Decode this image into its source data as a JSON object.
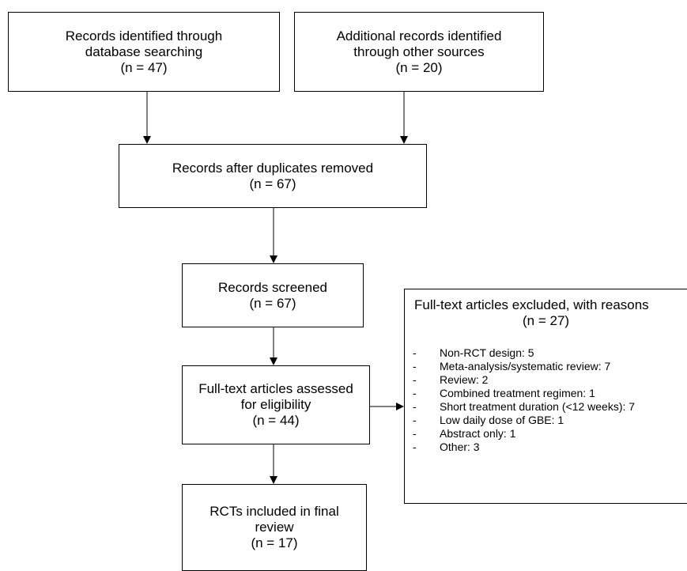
{
  "flow": {
    "db_search": {
      "lines": [
        "Records identified through",
        "database searching",
        "(n = 47)"
      ]
    },
    "other_sources": {
      "lines": [
        "Additional records identified",
        "through other sources",
        "(n = 20)"
      ]
    },
    "duplicates_removed": {
      "lines": [
        "Records after duplicates removed",
        "(n = 67)"
      ]
    },
    "screened": {
      "lines": [
        "Records screened",
        "(n = 67)"
      ]
    },
    "full_text_assessed": {
      "lines": [
        "Full-text articles assessed",
        "for eligibility",
        "(n = 44)"
      ]
    },
    "included": {
      "lines": [
        "RCTs included in final",
        "review",
        "(n = 17)"
      ]
    },
    "excluded": {
      "title": "Full-text articles excluded, with reasons",
      "count": "(n = 27)",
      "reasons": [
        {
          "dash": "-",
          "text": "Non-RCT design: 5"
        },
        {
          "dash": "-",
          "text": "Meta-analysis/systematic review: 7"
        },
        {
          "dash": "-",
          "text": "Review: 2"
        },
        {
          "dash": "-",
          "text": "Combined treatment regimen: 1"
        },
        {
          "dash": "-",
          "text": "Short treatment duration (<12 weeks): 7"
        },
        {
          "dash": "-",
          "text": "Low daily dose of GBE: 1"
        },
        {
          "dash": "-",
          "text": "Abstract only: 1"
        },
        {
          "dash": "-",
          "text": "Other: 3"
        }
      ]
    }
  },
  "colors": {
    "line": "#000000",
    "box_border": "#000000",
    "background": "#ffffff"
  }
}
